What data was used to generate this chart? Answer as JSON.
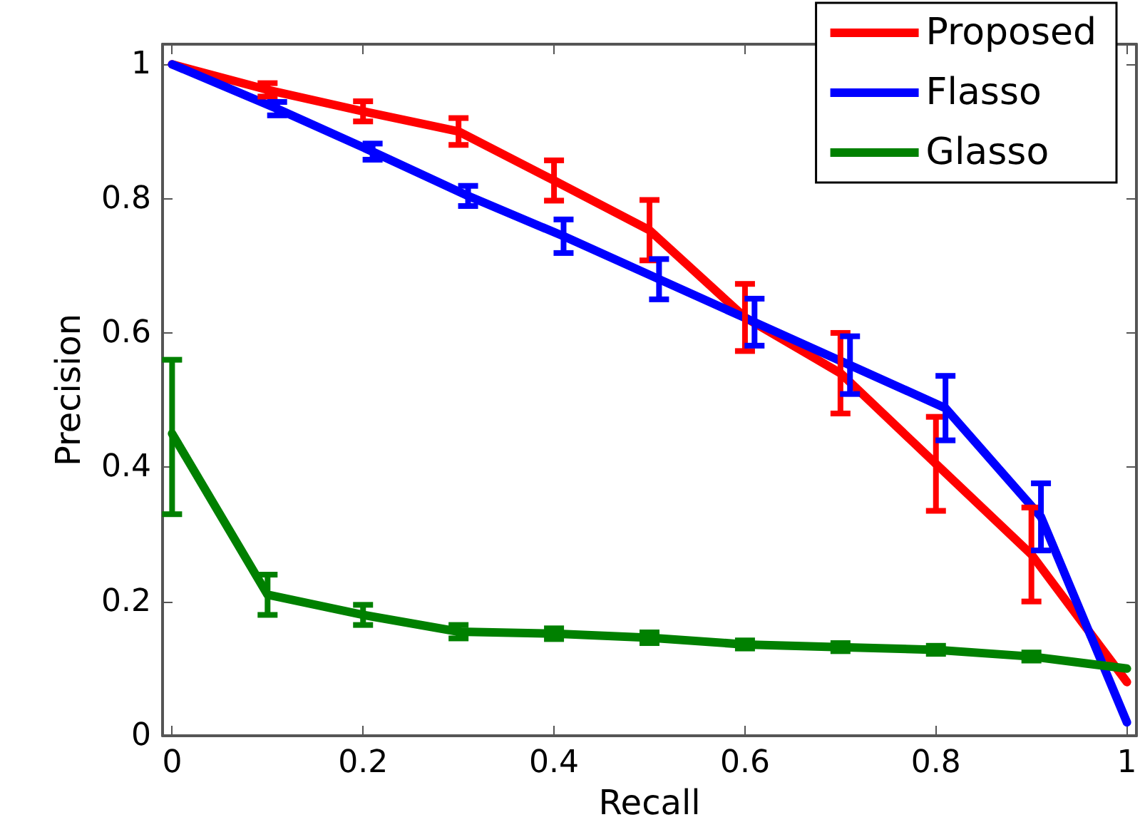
{
  "chart_data": {
    "type": "line",
    "xlabel": "Recall",
    "ylabel": "Precision",
    "xlim": [
      -0.01,
      1.01
    ],
    "ylim": [
      0,
      1.03
    ],
    "xticks": [
      0,
      0.2,
      0.4,
      0.6,
      0.8,
      1
    ],
    "yticks": [
      0,
      0.2,
      0.4,
      0.6,
      0.8,
      1
    ],
    "grid": false,
    "legend": "top right",
    "marker": "none",
    "line_style": "solid",
    "series": [
      {
        "name": "Proposed",
        "color": "#ff0000",
        "x": [
          0,
          0.1,
          0.2,
          0.3,
          0.4,
          0.5,
          0.6,
          0.7,
          0.8,
          0.9,
          1.0
        ],
        "values": [
          1.0,
          0.962,
          0.93,
          0.9,
          0.827,
          0.753,
          0.623,
          0.54,
          0.405,
          0.27,
          0.08
        ],
        "errors": [
          null,
          0.01,
          0.015,
          0.02,
          0.03,
          0.045,
          0.05,
          0.06,
          0.07,
          0.07,
          null
        ]
      },
      {
        "name": "Flasso",
        "color": "#0000ff",
        "x": [
          0,
          0.11,
          0.21,
          0.31,
          0.41,
          0.51,
          0.61,
          0.71,
          0.81,
          0.91,
          1.0
        ],
        "values": [
          1.0,
          0.934,
          0.87,
          0.804,
          0.744,
          0.68,
          0.616,
          0.552,
          0.488,
          0.326,
          0.02
        ],
        "errors": [
          null,
          0.01,
          0.012,
          0.015,
          0.025,
          0.03,
          0.035,
          0.043,
          0.048,
          0.05,
          null
        ]
      },
      {
        "name": "Glasso",
        "color": "#008000",
        "x": [
          0,
          0.1,
          0.2,
          0.3,
          0.4,
          0.5,
          0.6,
          0.7,
          0.8,
          0.9,
          1.0
        ],
        "values": [
          0.45,
          0.21,
          0.18,
          0.155,
          0.152,
          0.146,
          0.136,
          0.132,
          0.128,
          0.118,
          0.1
        ],
        "errors": [
          [
            0.33,
            0.56
          ],
          0.03,
          0.015,
          0.01,
          0.008,
          0.008,
          0.006,
          0.006,
          0.006,
          0.006,
          null
        ]
      }
    ]
  }
}
